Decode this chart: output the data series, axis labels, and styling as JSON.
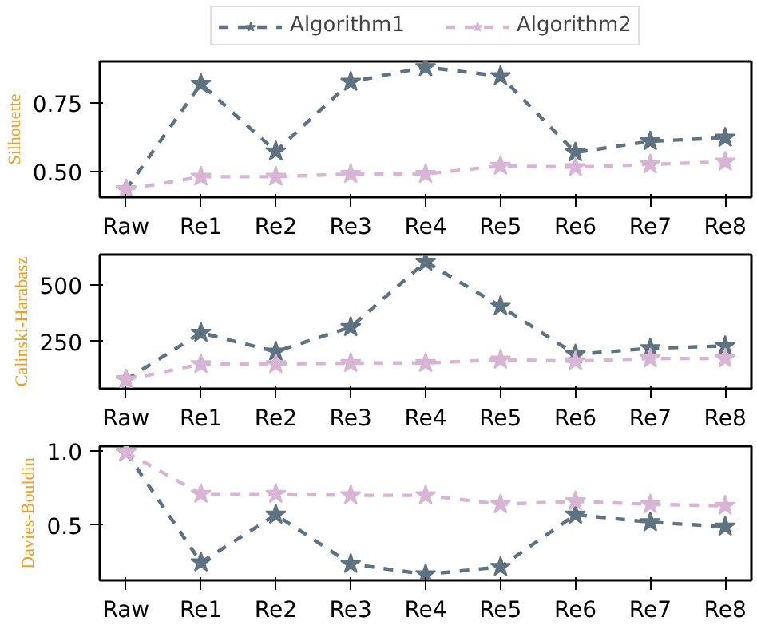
{
  "chart_data": [
    {
      "type": "line",
      "ylabel": "Silhouette",
      "categories": [
        "Raw",
        "Re1",
        "Re2",
        "Re3",
        "Re4",
        "Re5",
        "Re6",
        "Re7",
        "Re8"
      ],
      "series": [
        {
          "name": "Algorithm1",
          "color": "#5f7282",
          "values": [
            0.433,
            0.821,
            0.573,
            0.828,
            0.882,
            0.849,
            0.569,
            0.61,
            0.623
          ]
        },
        {
          "name": "Algorithm2",
          "color": "#d8b5d5",
          "values": [
            0.433,
            0.48,
            0.48,
            0.49,
            0.49,
            0.52,
            0.515,
            0.525,
            0.535
          ]
        }
      ],
      "ylim": [
        0.405,
        0.903
      ],
      "yticks": [
        {
          "value": 0.5,
          "label": "0.50"
        },
        0.75
      ],
      "grid": false,
      "legend": "top",
      "marker": "star",
      "line_style": "dashed"
    },
    {
      "type": "line",
      "ylabel": "Calinski-Harabasz",
      "categories": [
        "Raw",
        "Re1",
        "Re2",
        "Re3",
        "Re4",
        "Re5",
        "Re6",
        "Re7",
        "Re8"
      ],
      "series": [
        {
          "color": "#5f7282",
          "values": [
            82,
            288,
            205,
            313,
            600,
            405,
            193,
            220,
            230
          ]
        },
        {
          "color": "#d8b5d5",
          "values": [
            82,
            150,
            150,
            155,
            155,
            170,
            163,
            175,
            175
          ]
        }
      ],
      "ylim": [
        42,
        632
      ],
      "yticks": [
        250,
        500
      ],
      "grid": false,
      "marker": "star",
      "line_style": "dashed"
    },
    {
      "type": "line",
      "ylabel": "Davies-Bouldin",
      "categories": [
        "Raw",
        "Re1",
        "Re2",
        "Re3",
        "Re4",
        "Re5",
        "Re6",
        "Re7",
        "Re8"
      ],
      "series": [
        {
          "color": "#5f7282",
          "values": [
            0.99,
            0.25,
            0.57,
            0.24,
            0.17,
            0.22,
            0.57,
            0.52,
            0.49
          ]
        },
        {
          "color": "#d8b5d5",
          "values": [
            0.99,
            0.71,
            0.71,
            0.7,
            0.7,
            0.64,
            0.66,
            0.64,
            0.63
          ]
        }
      ],
      "ylim": [
        0.13,
        1.03
      ],
      "yticks": [
        0.5,
        {
          "value": 1.0,
          "label": "1.0"
        }
      ],
      "grid": false,
      "marker": "star",
      "line_style": "dashed"
    }
  ]
}
